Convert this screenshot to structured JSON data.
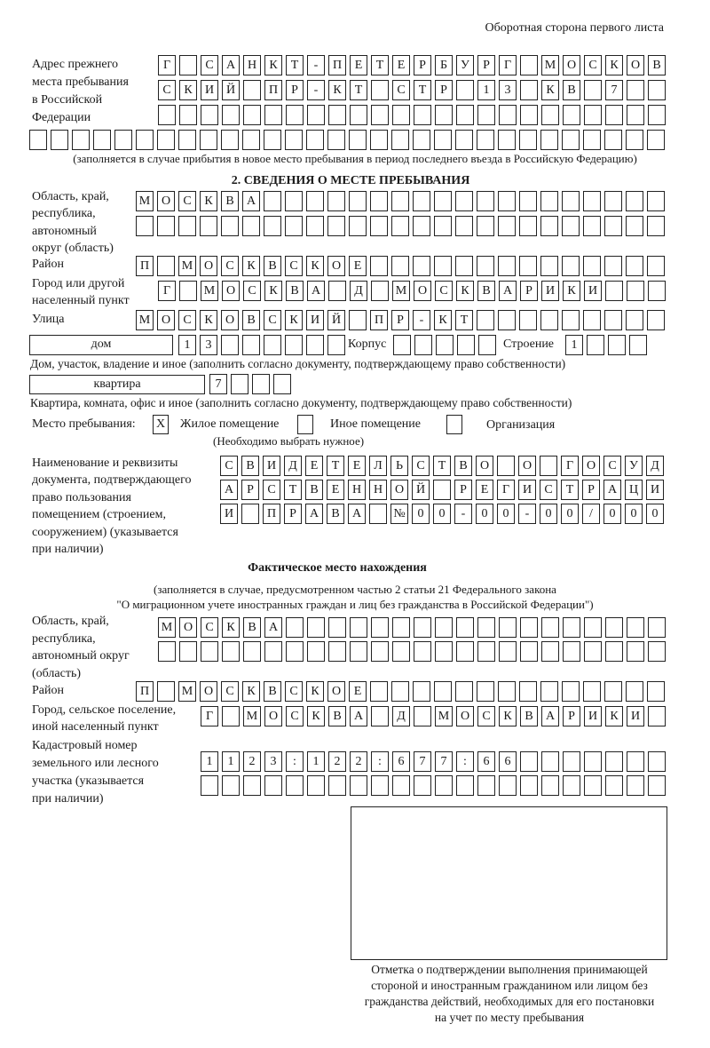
{
  "header": "Оборотная сторона первого листа",
  "prior_address": {
    "label": [
      "Адрес прежнего",
      "места пребывания",
      "в Российской",
      "Федерации"
    ],
    "rows": [
      "Г САНКТ-ПЕТЕРБУРГ МОСКОВ",
      "СКИЙ ПР-КТ СТР 13 КВ 7",
      "",
      ""
    ],
    "note": "(заполняется в случае прибытия в новое место пребывания в период последнего въезда в Российскую Федерацию)"
  },
  "section2": {
    "title": "2. СВЕДЕНИЯ О МЕСТЕ ПРЕБЫВАНИЯ",
    "region_label": [
      "Область, край,",
      "республика,",
      "автономный",
      "округ (область)"
    ],
    "region_rows": [
      "МОСКВА",
      ""
    ],
    "district_label": "Район",
    "district": "П МОСКВСКОЕ",
    "city_label": [
      "Город или другой",
      "населенный пункт"
    ],
    "city": "Г МОСКВА Д МОСКВАРИКИ",
    "street_label": "Улица",
    "street": "МОСКОВСКИЙ ПР-КТ",
    "house_type": "дом",
    "house": "13",
    "korpus_label": "Корпус",
    "korpus": "",
    "building_label": "Строение",
    "building": "1",
    "house_note": "Дом, участок, владение и иное (заполнить согласно документу, подтверждающему право собственности)",
    "apt_type": "квартира",
    "apt": "7",
    "apt_note": "Квартира, комната, офис и иное (заполнить согласно документу, подтверждающему право собственности)",
    "stay_label": "Место пребывания:",
    "stay_options": [
      {
        "label": "Жилое помещение",
        "mark": "X"
      },
      {
        "label": "Иное помещение",
        "mark": ""
      },
      {
        "label": "Организация",
        "mark": ""
      }
    ],
    "stay_note": "(Необходимо выбрать нужное)",
    "doc_label": [
      "Наименование и реквизиты",
      "документа, подтверждающего",
      "право пользования",
      "помещением (строением,",
      "сооружением) (указывается",
      "при наличии)"
    ],
    "doc_rows": [
      "СВИДЕТЕЛЬСТВО О ГОСУД",
      "АРСТВЕННОЙ РЕГИСТРАЦИ",
      "И ПРАВА №00-00-00/000"
    ]
  },
  "actual": {
    "title": "Фактическое место нахождения",
    "note": [
      "(заполняется в случае, предусмотренном частью 2 статьи 21 Федерального закона",
      "\"О миграционном учете иностранных граждан и лиц без гражданства в Российской Федерации\")"
    ],
    "region_label": [
      "Область, край,",
      "республика,",
      "автономный округ",
      "(область)"
    ],
    "region_rows": [
      "МОСКВА",
      ""
    ],
    "district_label": "Район",
    "district": "П МОСКВСКОЕ",
    "city_label": [
      "Город, сельское поселение,",
      "иной населенный пункт"
    ],
    "city": "Г МОСКВА Д МОСКВАРИКИ",
    "cadastre_label": [
      "Кадастровый номер",
      "земельного или лесного",
      "участка (указывается",
      "при наличии)"
    ],
    "cadastre_rows": [
      "1123:122:677:66",
      ""
    ]
  },
  "stamp_caption": [
    "Отметка о подтверждении выполнения принимающей",
    "стороной и иностранным гражданином или лицом без",
    "гражданства действий, необходимых для его постановки",
    "на учет по месту пребывания"
  ]
}
